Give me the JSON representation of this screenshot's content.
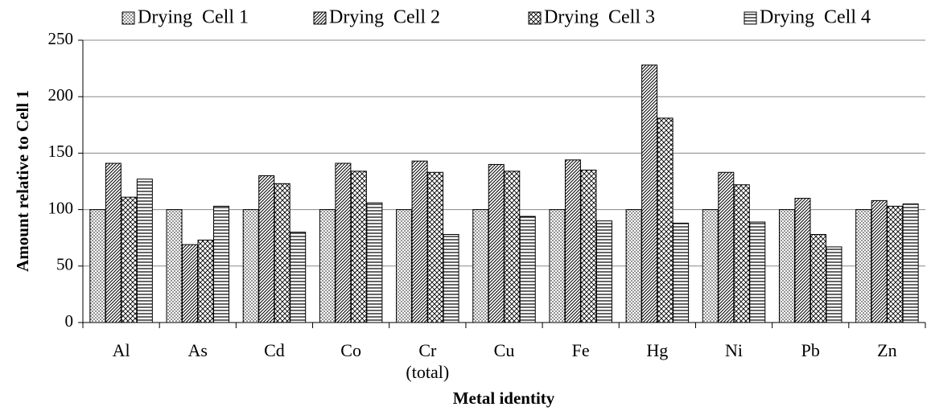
{
  "chart_data": {
    "type": "bar",
    "x_label": "Metal identity",
    "y_label": "Amount relative to Cell 1",
    "categories": [
      "Al",
      "As",
      "Cd",
      "Co",
      "Cr (total)",
      "Cu",
      "Fe",
      "Hg",
      "Ni",
      "Pb",
      "Zn"
    ],
    "series": [
      {
        "name": "Drying  Cell 1",
        "color": "#000000",
        "pattern": "dots",
        "values": [
          100,
          100,
          100,
          100,
          100,
          100,
          100,
          100,
          100,
          100,
          100
        ]
      },
      {
        "name": "Drying  Cell 2",
        "color": "#000000",
        "pattern": "diagonal",
        "values": [
          141,
          69,
          130,
          141,
          143,
          140,
          144,
          228,
          133,
          110,
          108
        ]
      },
      {
        "name": "Drying  Cell 3",
        "color": "#000000",
        "pattern": "crosshatch",
        "values": [
          111,
          73,
          123,
          134,
          133,
          134,
          135,
          181,
          122,
          78,
          103
        ]
      },
      {
        "name": "Drying  Cell 4",
        "color": "#000000",
        "pattern": "horizontal",
        "values": [
          127,
          103,
          80,
          106,
          78,
          94,
          90,
          88,
          89,
          67,
          105
        ]
      }
    ],
    "ylim": [
      0,
      250
    ],
    "yticks": [
      0,
      50,
      100,
      150,
      200,
      250
    ],
    "grid": true,
    "legend": "top"
  }
}
